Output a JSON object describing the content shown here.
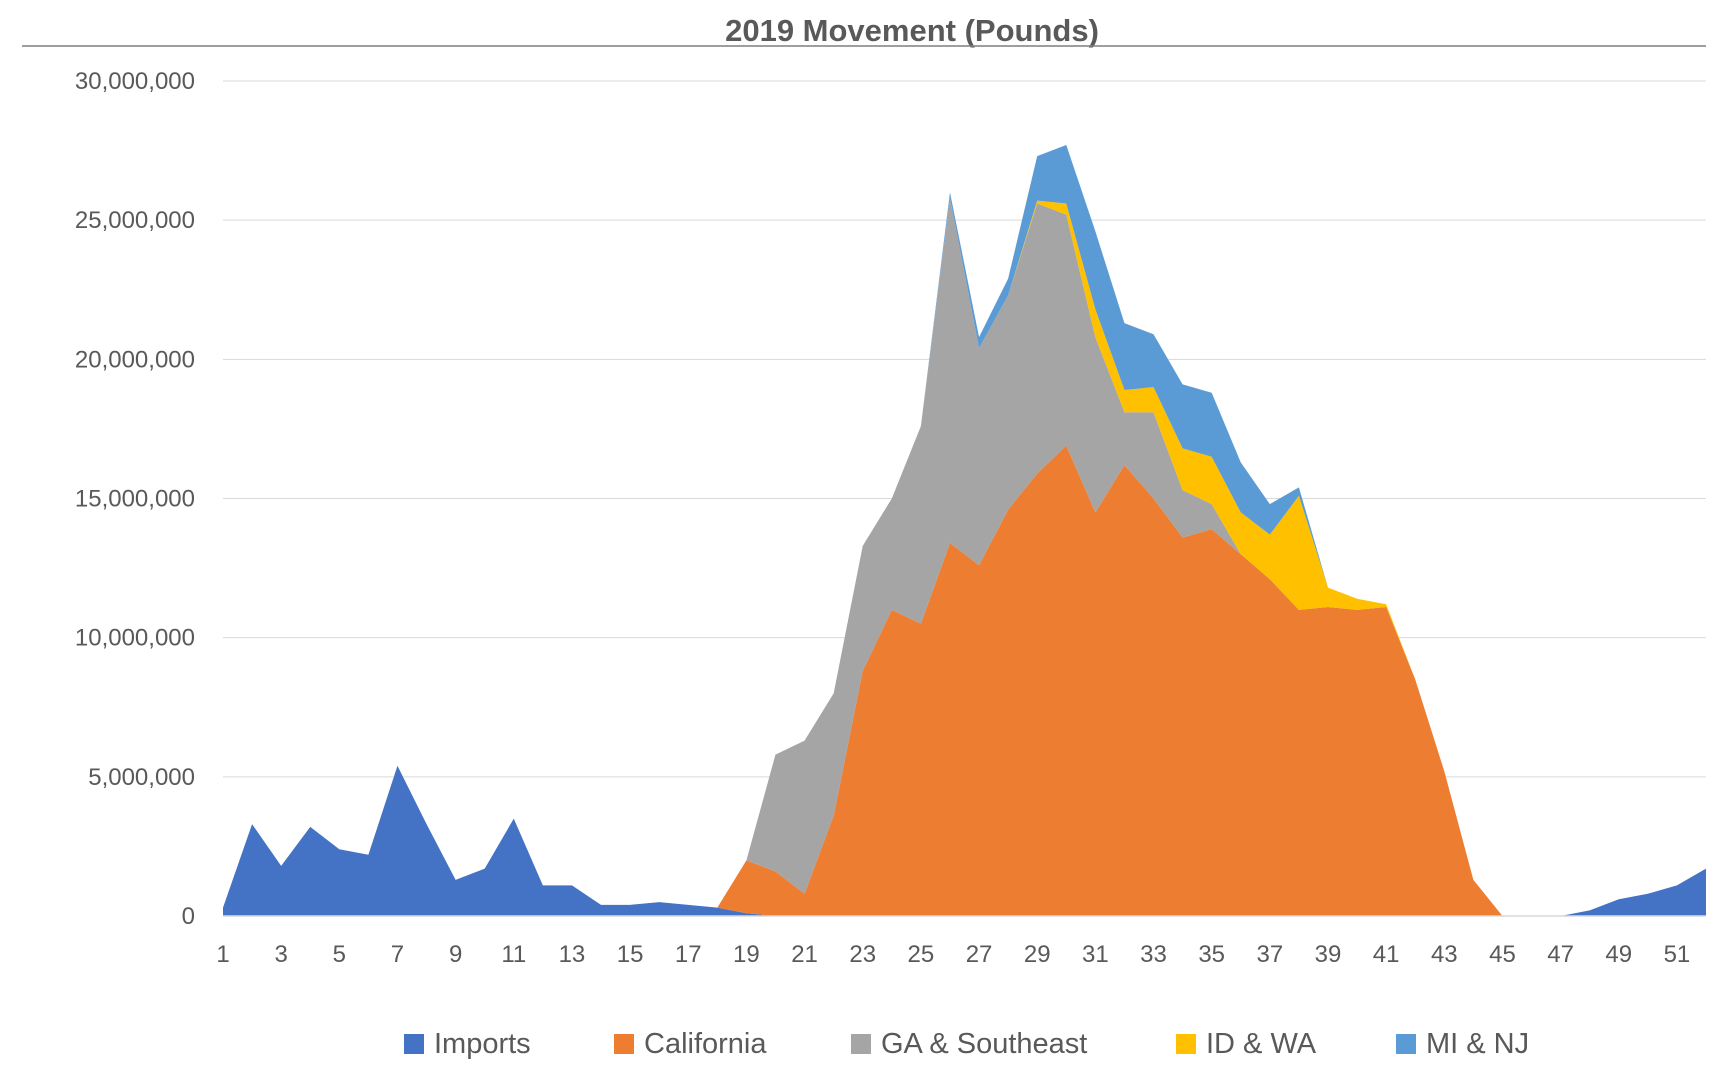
{
  "chart_data": {
    "type": "area",
    "stacked": true,
    "title": "2019 Movement (Pounds)",
    "xlabel": "",
    "ylabel": "",
    "x": [
      1,
      2,
      3,
      4,
      5,
      6,
      7,
      8,
      9,
      10,
      11,
      12,
      13,
      14,
      15,
      16,
      17,
      18,
      19,
      20,
      21,
      22,
      23,
      24,
      25,
      26,
      27,
      28,
      29,
      30,
      31,
      32,
      33,
      34,
      35,
      36,
      37,
      38,
      39,
      40,
      41,
      42,
      43,
      44,
      45,
      46,
      47,
      48,
      49,
      50,
      51,
      52
    ],
    "x_tick_labels": [
      "1",
      "3",
      "5",
      "7",
      "9",
      "11",
      "13",
      "15",
      "17",
      "19",
      "21",
      "23",
      "25",
      "27",
      "29",
      "31",
      "33",
      "35",
      "37",
      "39",
      "41",
      "43",
      "45",
      "47",
      "49",
      "51"
    ],
    "ylim": [
      0,
      30000000
    ],
    "y_tick_values": [
      0,
      5000000,
      10000000,
      15000000,
      20000000,
      25000000,
      30000000
    ],
    "y_tick_labels": [
      "0",
      "5,000,000",
      "10,000,000",
      "15,000,000",
      "20,000,000",
      "25,000,000",
      "30,000,000"
    ],
    "grid": "horizontal",
    "legend_position": "bottom",
    "series": [
      {
        "name": "Imports",
        "color": "#4472C4",
        "values": [
          300000,
          3300000,
          1800000,
          3200000,
          2400000,
          2200000,
          5400000,
          3300000,
          1300000,
          1700000,
          3500000,
          1100000,
          1100000,
          400000,
          400000,
          500000,
          400000,
          300000,
          100000,
          0,
          0,
          0,
          0,
          0,
          0,
          0,
          0,
          0,
          0,
          0,
          0,
          0,
          0,
          0,
          0,
          0,
          0,
          0,
          0,
          0,
          0,
          0,
          0,
          0,
          0,
          0,
          0,
          200000,
          600000,
          800000,
          1100000,
          1700000
        ]
      },
      {
        "name": "California",
        "color": "#ED7D31",
        "values": [
          0,
          0,
          0,
          0,
          0,
          0,
          0,
          0,
          0,
          0,
          0,
          0,
          0,
          0,
          0,
          0,
          0,
          0,
          1900000,
          1600000,
          800000,
          3600000,
          8800000,
          11000000,
          10500000,
          13400000,
          12600000,
          14600000,
          15900000,
          16900000,
          14500000,
          16200000,
          15000000,
          13600000,
          13900000,
          13000000,
          12100000,
          11000000,
          11100000,
          11000000,
          11100000,
          8500000,
          5200000,
          1300000,
          0,
          0,
          0,
          0,
          0,
          0,
          0,
          0
        ]
      },
      {
        "name": "GA & Southeast",
        "color": "#A5A5A5",
        "values": [
          0,
          0,
          0,
          0,
          0,
          0,
          0,
          0,
          0,
          0,
          0,
          0,
          0,
          0,
          0,
          0,
          0,
          0,
          0,
          4200000,
          5500000,
          4400000,
          4500000,
          4000000,
          7100000,
          12400000,
          7800000,
          7700000,
          9700000,
          8300000,
          6300000,
          1900000,
          3100000,
          1700000,
          900000,
          0,
          0,
          0,
          0,
          0,
          0,
          0,
          0,
          0,
          0,
          0,
          0,
          0,
          0,
          0,
          0,
          0
        ]
      },
      {
        "name": "ID & WA",
        "color": "#FFC000",
        "values": [
          0,
          0,
          0,
          0,
          0,
          0,
          0,
          0,
          0,
          0,
          0,
          0,
          0,
          0,
          0,
          0,
          0,
          0,
          0,
          0,
          0,
          0,
          0,
          0,
          0,
          0,
          0,
          0,
          100000,
          400000,
          1000000,
          800000,
          900000,
          1500000,
          1700000,
          1500000,
          1600000,
          4100000,
          700000,
          400000,
          100000,
          0,
          0,
          0,
          0,
          0,
          0,
          0,
          0,
          0,
          0,
          0
        ]
      },
      {
        "name": "MI & NJ",
        "color": "#5B9BD5",
        "values": [
          0,
          0,
          0,
          0,
          0,
          0,
          0,
          0,
          0,
          0,
          0,
          0,
          0,
          0,
          0,
          0,
          0,
          0,
          0,
          0,
          0,
          0,
          0,
          0,
          0,
          200000,
          400000,
          600000,
          1600000,
          2100000,
          2800000,
          2400000,
          1900000,
          2300000,
          2300000,
          1800000,
          1100000,
          300000,
          0,
          0,
          0,
          0,
          0,
          0,
          0,
          0,
          0,
          0,
          0,
          0,
          0,
          0
        ]
      }
    ]
  }
}
